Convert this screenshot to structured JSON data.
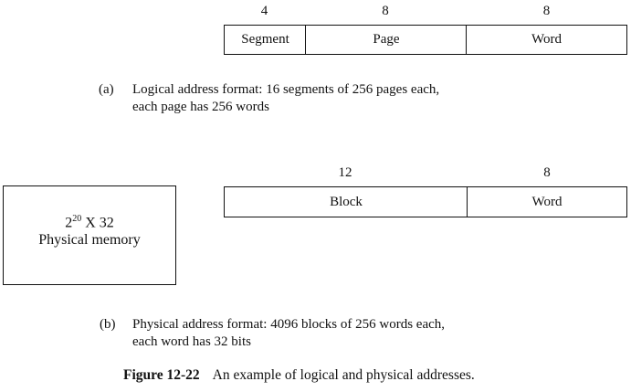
{
  "logical_format": {
    "fields": [
      {
        "bits": "4",
        "label": "Segment"
      },
      {
        "bits": "8",
        "label": "Page"
      },
      {
        "bits": "8",
        "label": "Word"
      }
    ],
    "caption_tag": "(a)",
    "caption_line1": "Logical address format: 16 segments of 256 pages each,",
    "caption_line2": "each page has 256 words"
  },
  "physical_memory": {
    "size_base": "2",
    "size_exp": "20",
    "size_rest": " X 32",
    "label": "Physical memory"
  },
  "physical_format": {
    "fields": [
      {
        "bits": "12",
        "label": "Block"
      },
      {
        "bits": "8",
        "label": "Word"
      }
    ],
    "caption_tag": "(b)",
    "caption_line1": "Physical address format: 4096 blocks of 256 words each,",
    "caption_line2": "each word has 32 bits"
  },
  "figure": {
    "number": "Figure 12-22",
    "title": "An example of logical and physical addresses."
  }
}
